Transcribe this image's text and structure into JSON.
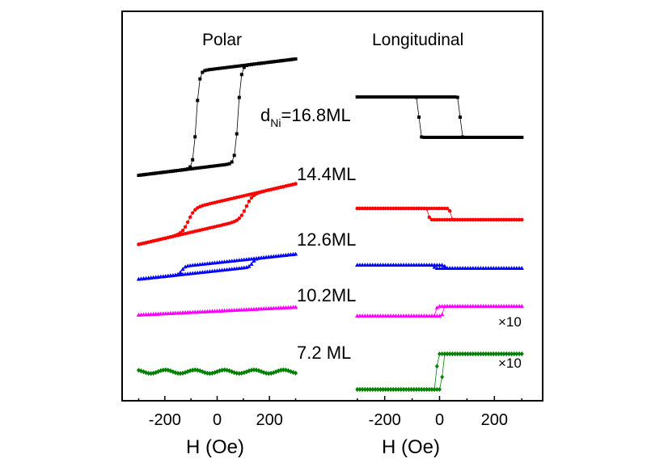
{
  "chart_data": {
    "type": "line",
    "panels": [
      {
        "title": "Polar",
        "xlabel": "H (Oe)",
        "xlim": [
          -320,
          320
        ],
        "xticks": [
          -200,
          0,
          200
        ]
      },
      {
        "title": "Longitudinal",
        "xlabel": "H (Oe)",
        "xlim": [
          -320,
          320
        ],
        "xticks": [
          -200,
          0,
          200
        ]
      }
    ],
    "series": [
      {
        "name": "dNi=16.8ML",
        "label_main": "d",
        "label_sub": "Ni",
        "label_rest": "=16.8ML",
        "color": "#000000",
        "marker": "square",
        "polar": {
          "coercivity": 80,
          "amplitude": 60,
          "slope": 0.04,
          "width": 12
        },
        "longitudinal": {
          "coercivity": 75,
          "amplitude": 25,
          "width": 4,
          "sign": -1
        }
      },
      {
        "name": "14.4ML",
        "color": "#ff0000",
        "marker": "circle",
        "polar": {
          "coercivity": 110,
          "amplitude": 15,
          "slope": 0.075,
          "width": 25
        },
        "longitudinal": {
          "coercivity": 40,
          "amplitude": 7,
          "width": 4,
          "sign": -1
        }
      },
      {
        "name": "12.6ML",
        "color": "#0000ff",
        "marker": "triangle",
        "polar": {
          "coercivity": 135,
          "amplitude": 5,
          "slope": 0.035,
          "width": 12
        },
        "longitudinal": {
          "coercivity": 20,
          "amplitude": 2,
          "width": 4,
          "sign": -1
        }
      },
      {
        "name": "10.2ML",
        "color": "#ff00ff",
        "marker": "triangle",
        "polar": {
          "coercivity": 0,
          "amplitude": 0,
          "slope": 0.016,
          "width": 10
        },
        "longitudinal": {
          "coercivity": 12,
          "amplitude": 6,
          "width": 3,
          "sign": 1
        }
      },
      {
        "name": "7.2 ML",
        "color": "#008000",
        "marker": "diamond",
        "polar": {
          "coercivity": 0,
          "amplitude": 0,
          "slope": 0.0,
          "width": 10
        },
        "longitudinal": {
          "coercivity": 10,
          "amplitude": 22,
          "width": 2,
          "sign": 1
        }
      }
    ],
    "annotations": {
      "factor": "×10",
      "applies_to": [
        "10.2ML",
        "7.2 ML"
      ],
      "panel": "Longitudinal"
    },
    "grid": false,
    "legend": "none"
  }
}
